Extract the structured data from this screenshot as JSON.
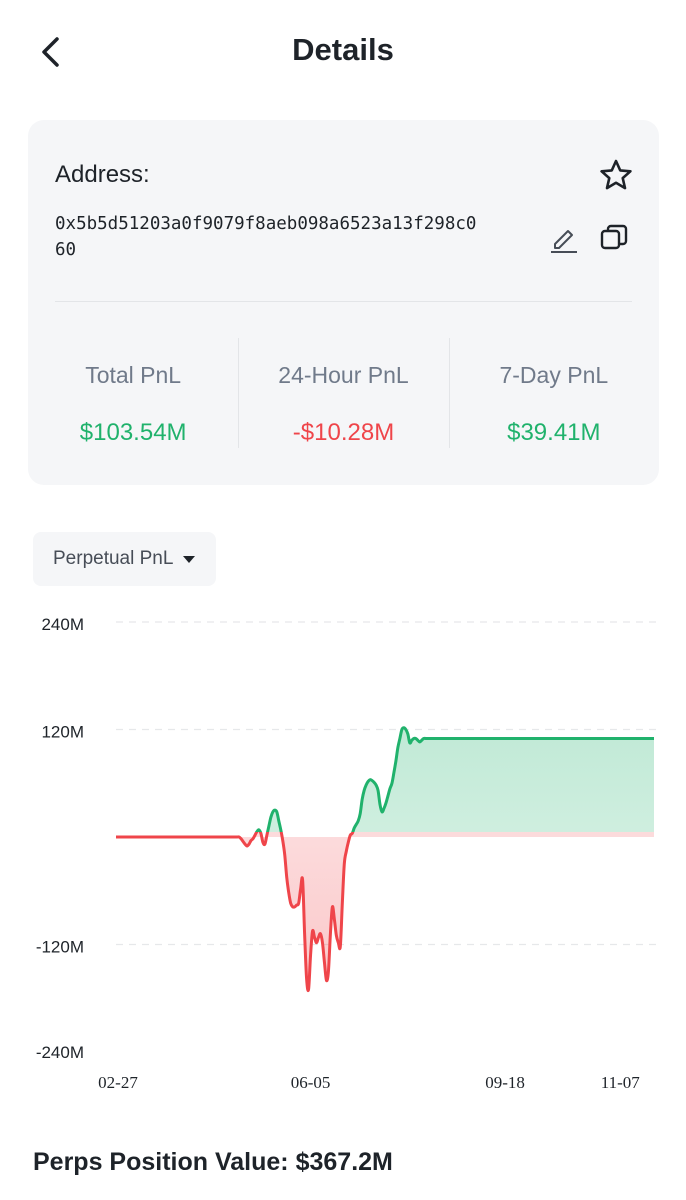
{
  "header": {
    "title": "Details",
    "back_icon": "chevron-left-icon"
  },
  "address_card": {
    "label": "Address:",
    "address": "0x5b5d51203a0f9079f8aeb098a6523a13f298c060",
    "icons": [
      "star-icon",
      "edit-icon",
      "copy-icon"
    ]
  },
  "stats": [
    {
      "label": "Total PnL",
      "value": "$103.54M",
      "tone": "positive"
    },
    {
      "label": "24-Hour PnL",
      "value": "-$10.28M",
      "tone": "negative"
    },
    {
      "label": "7-Day PnL",
      "value": "$39.41M",
      "tone": "positive"
    }
  ],
  "selector": {
    "label": "Perpetual PnL"
  },
  "colors": {
    "positive": "#20b26c",
    "negative": "#ef454a",
    "card_bg": "#f5f6f8",
    "text_primary": "#1e2329",
    "text_secondary": "#707a8a"
  },
  "chart_data": {
    "type": "area",
    "title": "",
    "xlabel": "",
    "ylabel": "",
    "ylim": [
      -240,
      240
    ],
    "y_ticks": [
      "240M",
      "120M",
      "-120M",
      "-240M"
    ],
    "y_tick_values": [
      240,
      120,
      -120,
      -240
    ],
    "x_ticks": [
      "02-27",
      "06-05",
      "09-18",
      "11-07"
    ],
    "x_tick_index": [
      0,
      98,
      196,
      254
    ],
    "grid": true,
    "legend": "none",
    "unit": "M",
    "series": [
      {
        "values": [
          0,
          0,
          0,
          0,
          0,
          0,
          0,
          0,
          0,
          0,
          0,
          0,
          0,
          0,
          0,
          0,
          0,
          0,
          0,
          0,
          0,
          0,
          0,
          0,
          0,
          0,
          0,
          0,
          0,
          0,
          0,
          0,
          0,
          0,
          0,
          0,
          0,
          0,
          0,
          0,
          0,
          0,
          0,
          0,
          0,
          0,
          0,
          0,
          0,
          0,
          0,
          0,
          0,
          0,
          0,
          0,
          0,
          0,
          0,
          0,
          0,
          0,
          0,
          -2,
          -5,
          -8,
          -10,
          -8,
          -4,
          -2,
          2,
          6,
          8,
          4,
          -6,
          -8,
          2,
          12,
          22,
          28,
          30,
          28,
          18,
          8,
          -4,
          -20,
          -45,
          -62,
          -74,
          -78,
          -78,
          -76,
          -74,
          -58,
          -48,
          -108,
          -158,
          -170,
          -132,
          -105,
          -112,
          -118,
          -112,
          -108,
          -118,
          -140,
          -160,
          -150,
          -108,
          -78,
          -92,
          -110,
          -118,
          -122,
          -74,
          -30,
          -16,
          -6,
          2,
          4,
          10,
          14,
          18,
          26,
          42,
          52,
          58,
          62,
          64,
          63,
          61,
          58,
          52,
          36,
          28,
          32,
          38,
          46,
          54,
          60,
          72,
          85,
          100,
          110,
          120,
          122,
          120,
          115,
          105,
          108,
          110,
          110,
          108,
          106,
          108,
          110,
          110,
          110,
          110,
          110,
          110,
          110,
          110,
          110,
          110,
          110,
          110,
          110,
          110,
          110,
          110,
          110,
          110,
          110,
          110,
          110,
          110,
          110,
          110,
          110,
          110,
          110,
          110,
          110,
          110,
          110,
          110,
          110,
          110,
          110,
          110,
          110,
          110,
          110,
          110,
          110,
          110,
          110,
          110,
          110,
          110,
          110,
          110,
          110,
          110,
          110,
          110,
          110,
          110,
          110,
          110,
          110,
          110,
          110,
          110,
          110,
          110,
          110,
          110,
          110,
          110,
          110,
          110,
          110,
          110,
          110,
          110,
          110,
          110,
          110,
          110,
          110,
          110,
          110,
          110,
          110,
          110,
          110,
          110,
          110,
          110,
          110,
          110,
          110,
          110,
          110,
          110,
          110,
          110,
          110,
          110,
          110,
          110,
          110,
          110,
          110,
          110,
          110,
          110,
          110,
          110,
          110,
          110,
          110,
          110,
          110,
          110,
          110,
          110,
          110,
          110,
          110
        ]
      }
    ]
  },
  "footer": {
    "label": "Perps Position Value:",
    "value": "$367.2M"
  }
}
